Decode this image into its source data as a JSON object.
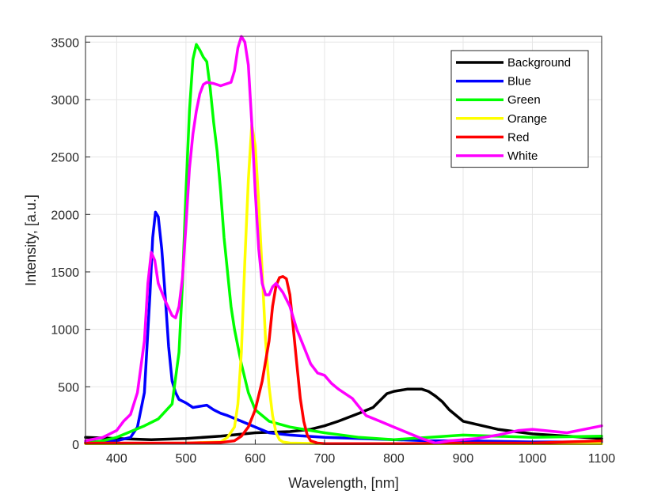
{
  "chart_data": {
    "type": "line",
    "title": "",
    "xlabel": "Wavelength, [nm]",
    "ylabel": "Intensity, [a.u.]",
    "xlim": [
      355,
      1100
    ],
    "ylim": [
      0,
      3550
    ],
    "xticks": [
      400,
      500,
      600,
      700,
      800,
      900,
      1000,
      1100
    ],
    "yticks": [
      0,
      500,
      1000,
      1500,
      2000,
      2500,
      3000,
      3500
    ],
    "grid": true,
    "legend_position": "top-right",
    "series": [
      {
        "name": "Background",
        "color": "#000000",
        "x": [
          355,
          380,
          400,
          450,
          500,
          550,
          600,
          650,
          680,
          700,
          720,
          750,
          770,
          780,
          790,
          800,
          820,
          840,
          850,
          860,
          870,
          880,
          900,
          950,
          1000,
          1050,
          1100
        ],
        "y": [
          60,
          55,
          50,
          40,
          50,
          70,
          100,
          110,
          130,
          160,
          200,
          270,
          320,
          380,
          440,
          460,
          480,
          480,
          460,
          420,
          370,
          300,
          200,
          130,
          90,
          70,
          50
        ]
      },
      {
        "name": "Blue",
        "color": "#0000ff",
        "x": [
          355,
          380,
          400,
          420,
          430,
          440,
          448,
          452,
          456,
          460,
          465,
          470,
          475,
          480,
          485,
          490,
          500,
          510,
          520,
          530,
          540,
          550,
          560,
          580,
          600,
          620,
          650,
          700,
          750,
          800,
          850,
          900,
          1000,
          1100
        ],
        "y": [
          20,
          25,
          30,
          60,
          150,
          450,
          1300,
          1800,
          2020,
          1980,
          1700,
          1300,
          850,
          550,
          450,
          390,
          360,
          320,
          330,
          340,
          300,
          270,
          250,
          200,
          150,
          100,
          80,
          60,
          50,
          40,
          30,
          30,
          20,
          20
        ]
      },
      {
        "name": "Green",
        "color": "#00ff00",
        "x": [
          355,
          380,
          400,
          420,
          440,
          460,
          480,
          490,
          495,
          500,
          505,
          510,
          515,
          520,
          525,
          530,
          535,
          540,
          545,
          550,
          555,
          560,
          565,
          570,
          580,
          590,
          600,
          620,
          650,
          700,
          750,
          800,
          900,
          1000,
          1100
        ],
        "y": [
          10,
          30,
          60,
          110,
          160,
          220,
          350,
          800,
          1400,
          2200,
          2900,
          3350,
          3480,
          3430,
          3370,
          3330,
          3100,
          2800,
          2550,
          2200,
          1800,
          1500,
          1200,
          1000,
          700,
          450,
          300,
          200,
          150,
          100,
          60,
          40,
          80,
          60,
          70
        ]
      },
      {
        "name": "Orange",
        "color": "#ffff00",
        "x": [
          355,
          400,
          500,
          550,
          560,
          570,
          575,
          580,
          585,
          590,
          595,
          600,
          605,
          610,
          615,
          620,
          625,
          630,
          635,
          640,
          650,
          700,
          800,
          900,
          1000,
          1100
        ],
        "y": [
          5,
          5,
          10,
          20,
          60,
          150,
          350,
          800,
          1600,
          2300,
          2780,
          2600,
          2100,
          1500,
          900,
          500,
          250,
          100,
          40,
          20,
          10,
          5,
          5,
          5,
          5,
          5
        ]
      },
      {
        "name": "Red",
        "color": "#ff0000",
        "x": [
          355,
          400,
          500,
          550,
          570,
          580,
          590,
          600,
          610,
          620,
          625,
          630,
          635,
          640,
          645,
          650,
          655,
          660,
          665,
          670,
          675,
          680,
          690,
          700,
          800,
          900,
          1000,
          1100
        ],
        "y": [
          10,
          10,
          10,
          15,
          30,
          70,
          150,
          300,
          550,
          900,
          1200,
          1380,
          1450,
          1460,
          1440,
          1300,
          1000,
          700,
          400,
          200,
          80,
          30,
          10,
          5,
          5,
          10,
          10,
          30
        ]
      },
      {
        "name": "White",
        "color": "#ff00ff",
        "x": [
          355,
          380,
          400,
          410,
          420,
          430,
          440,
          445,
          450,
          455,
          460,
          470,
          480,
          485,
          490,
          495,
          500,
          505,
          510,
          515,
          520,
          525,
          530,
          540,
          550,
          560,
          565,
          570,
          575,
          580,
          585,
          590,
          595,
          600,
          605,
          610,
          615,
          620,
          625,
          630,
          640,
          650,
          660,
          670,
          680,
          690,
          700,
          710,
          720,
          740,
          760,
          780,
          800,
          820,
          840,
          860,
          880,
          900,
          920,
          950,
          980,
          1000,
          1050,
          1100
        ],
        "y": [
          30,
          60,
          120,
          200,
          260,
          450,
          900,
          1400,
          1670,
          1600,
          1400,
          1250,
          1120,
          1100,
          1200,
          1450,
          1900,
          2400,
          2700,
          2900,
          3050,
          3130,
          3150,
          3140,
          3120,
          3140,
          3150,
          3250,
          3450,
          3550,
          3500,
          3300,
          2800,
          2200,
          1700,
          1400,
          1300,
          1300,
          1370,
          1400,
          1320,
          1200,
          1000,
          850,
          700,
          620,
          600,
          530,
          480,
          400,
          250,
          200,
          150,
          100,
          50,
          10,
          30,
          40,
          50,
          80,
          120,
          130,
          100,
          160
        ]
      }
    ]
  }
}
